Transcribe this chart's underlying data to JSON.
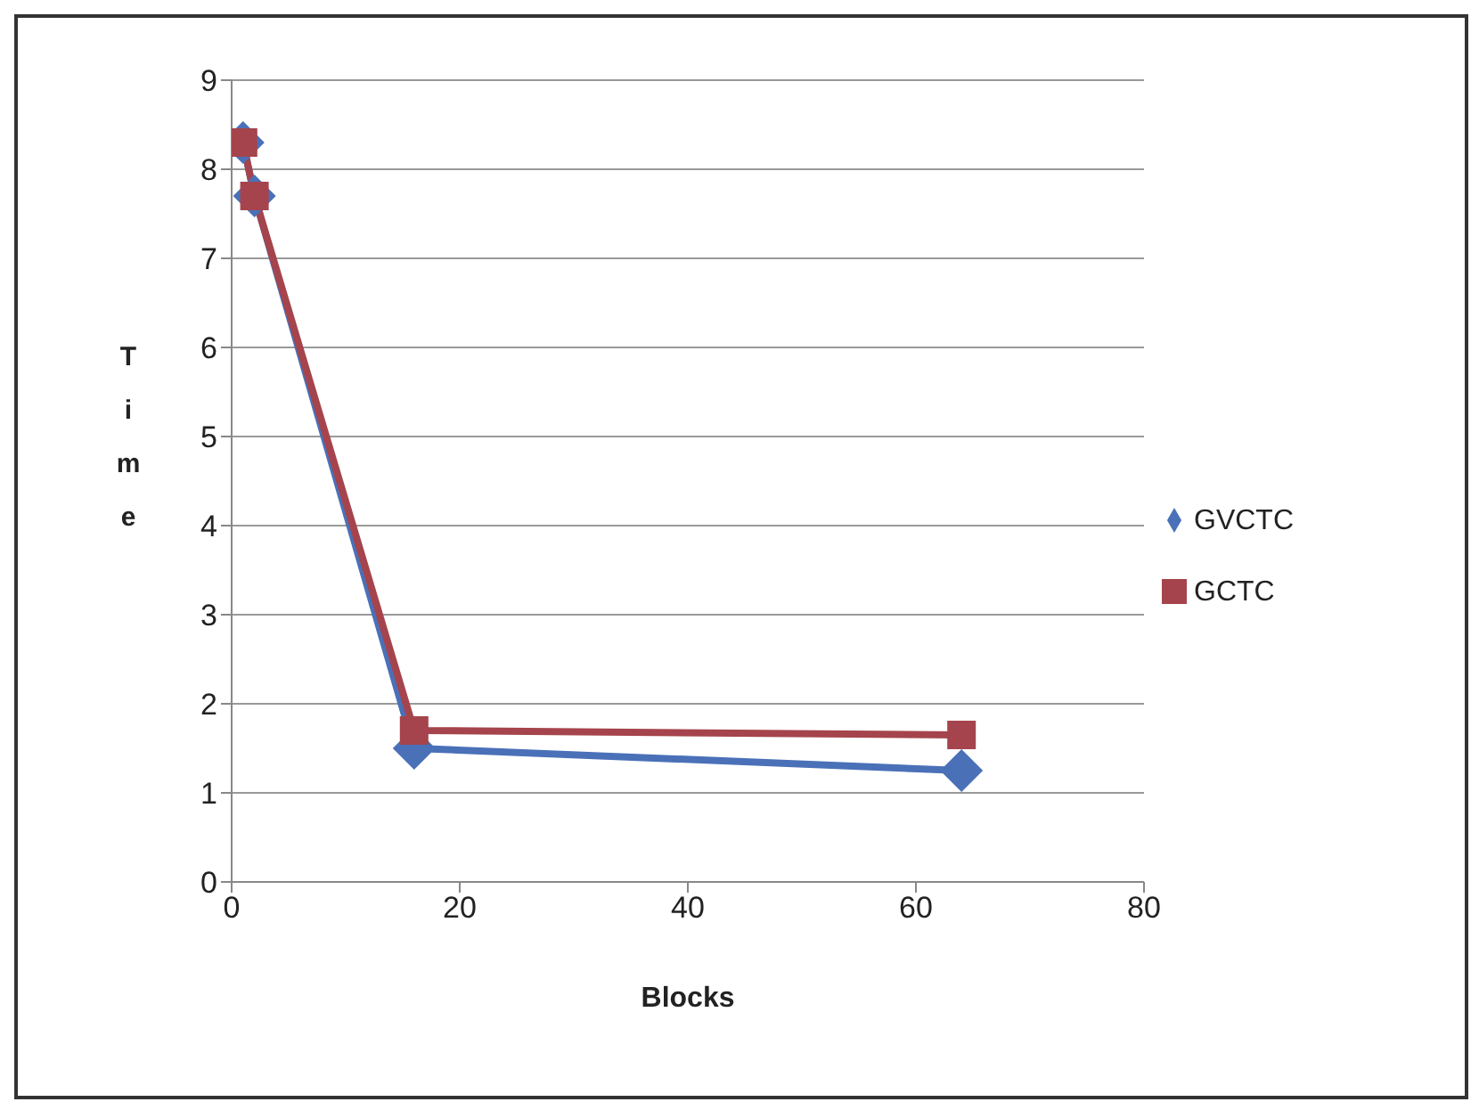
{
  "chart_data": {
    "type": "line",
    "xlabel": "Blocks",
    "ylabel": "Time",
    "x": [
      1,
      2,
      16,
      64
    ],
    "series": [
      {
        "name": "GVCTC",
        "color": "#4a70b8",
        "values": [
          8.3,
          7.7,
          1.5,
          1.25
        ],
        "marker": "diamond"
      },
      {
        "name": "GCTC",
        "color": "#a5444c",
        "values": [
          8.3,
          7.7,
          1.7,
          1.65
        ],
        "marker": "square"
      }
    ],
    "xlim": [
      0,
      80
    ],
    "xticks": [
      0,
      20,
      40,
      60,
      80
    ],
    "ylim": [
      0,
      9
    ],
    "yticks": [
      0,
      1,
      2,
      3,
      4,
      5,
      6,
      7,
      8,
      9
    ],
    "grid": "y",
    "legend": "right"
  }
}
